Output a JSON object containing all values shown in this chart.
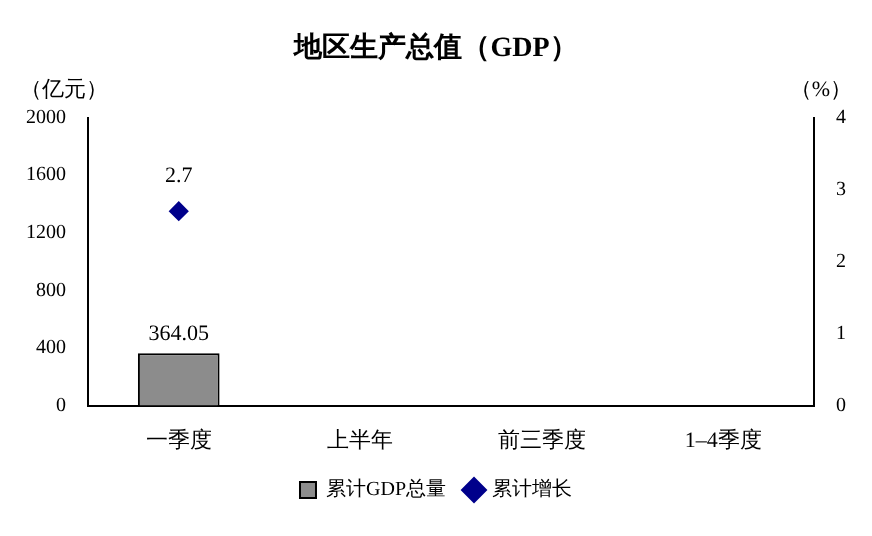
{
  "chart_data": {
    "type": "bar",
    "title": "地区生产总值（GDP）",
    "ylabel": "（亿元）",
    "y2label": "（%）",
    "categories": [
      "一季度",
      "上半年",
      "前三季度",
      "1–4季度"
    ],
    "series": [
      {
        "name": "累计GDP总量",
        "color": "#8c8c8c",
        "values": [
          364.05,
          null,
          null,
          null
        ]
      },
      {
        "name": "累计增长",
        "type": "line",
        "axis": "y2",
        "color": "#00008b",
        "values": [
          2.7,
          null,
          null,
          null
        ]
      }
    ],
    "ylim": [
      0,
      2000
    ],
    "yticks": [
      0,
      400,
      800,
      1200,
      1600,
      2000
    ],
    "y2lim": [
      0,
      4
    ],
    "y2ticks": [
      0,
      1,
      2,
      3,
      4
    ],
    "legend": "bottom",
    "marker": "diamond",
    "data_labels": true
  }
}
